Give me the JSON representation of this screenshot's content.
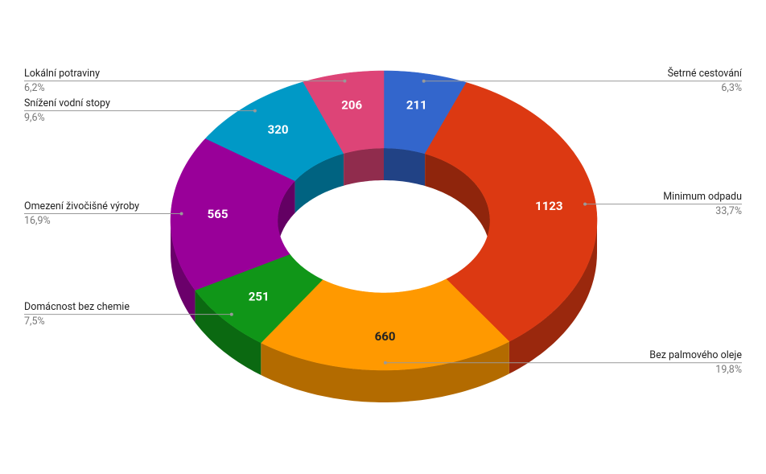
{
  "chart_data": {
    "type": "pie",
    "donut": true,
    "three_d": true,
    "categories": [
      "Šetrné cestování",
      "Minimum odpadu",
      "Bez palmového oleje",
      "Domácnost bez chemie",
      "Omezení živočišné výroby",
      "Snížení vodní stopy",
      "Lokální potraviny"
    ],
    "values": [
      211,
      1123,
      660,
      251,
      565,
      320,
      206
    ],
    "percent_labels": [
      "6,3%",
      "33,7%",
      "19,8%",
      "7,5%",
      "16,9%",
      "9,6%",
      "6,2%"
    ],
    "colors": [
      "#3366cc",
      "#dc3912",
      "#ff9900",
      "#109618",
      "#990099",
      "#0099c6",
      "#dd4477"
    ]
  }
}
